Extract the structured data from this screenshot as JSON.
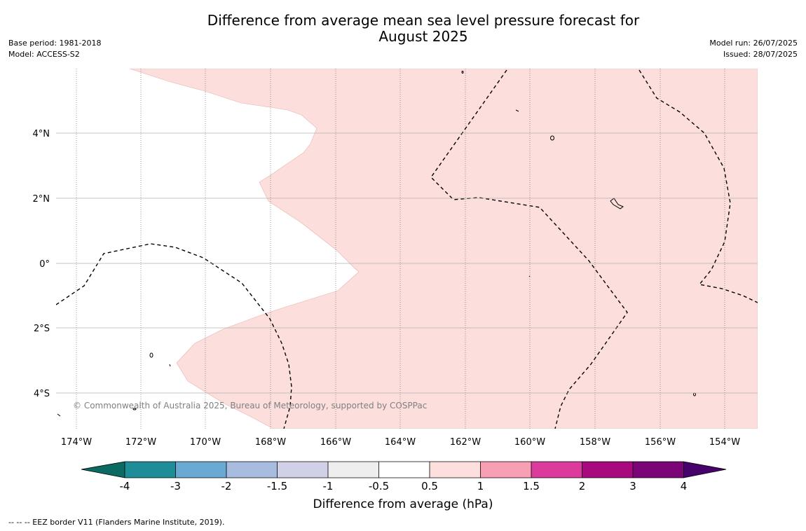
{
  "title_line1": "Difference from average mean sea level pressure forecast for",
  "title_line2": "August 2025",
  "base_period": "Base period: 1981-2018",
  "model": "Model: ACCESS-S2",
  "model_run": "Model run: 26/07/2025",
  "issued": "Issued: 28/07/2025",
  "copyright": "© Commonwealth of Australia 2025, Bureau of Meteorology, supported by COSPPac",
  "footer_note": "--  --  -- EEZ border V11 (Flanders Marine Institute, 2019).",
  "map": {
    "lon_ticks": [
      "174°W",
      "172°W",
      "170°W",
      "168°W",
      "166°W",
      "164°W",
      "162°W",
      "160°W",
      "158°W",
      "156°W",
      "154°W"
    ],
    "lat_ticks": [
      "4°N",
      "2°N",
      "0°",
      "2°S",
      "4°S"
    ],
    "background_color": "#ffffff",
    "anomaly_fill_color": "#fcdedd",
    "anomaly_fill_category": "0.5 to 1 hPa"
  },
  "colorbar": {
    "label": "Difference from average (hPa)",
    "tick_labels": [
      "-4",
      "-3",
      "-2",
      "-1.5",
      "-1",
      "-0.5",
      "0.5",
      "1",
      "1.5",
      "2",
      "3",
      "4"
    ],
    "colors": [
      "#0b6a61",
      "#1e8d98",
      "#6aaad2",
      "#a7bcde",
      "#d0d0e6",
      "#eeeeee",
      "#ffffff",
      "#fde0de",
      "#f89fb6",
      "#db3b9c",
      "#a9097e",
      "#7b0577",
      "#47036b"
    ]
  }
}
